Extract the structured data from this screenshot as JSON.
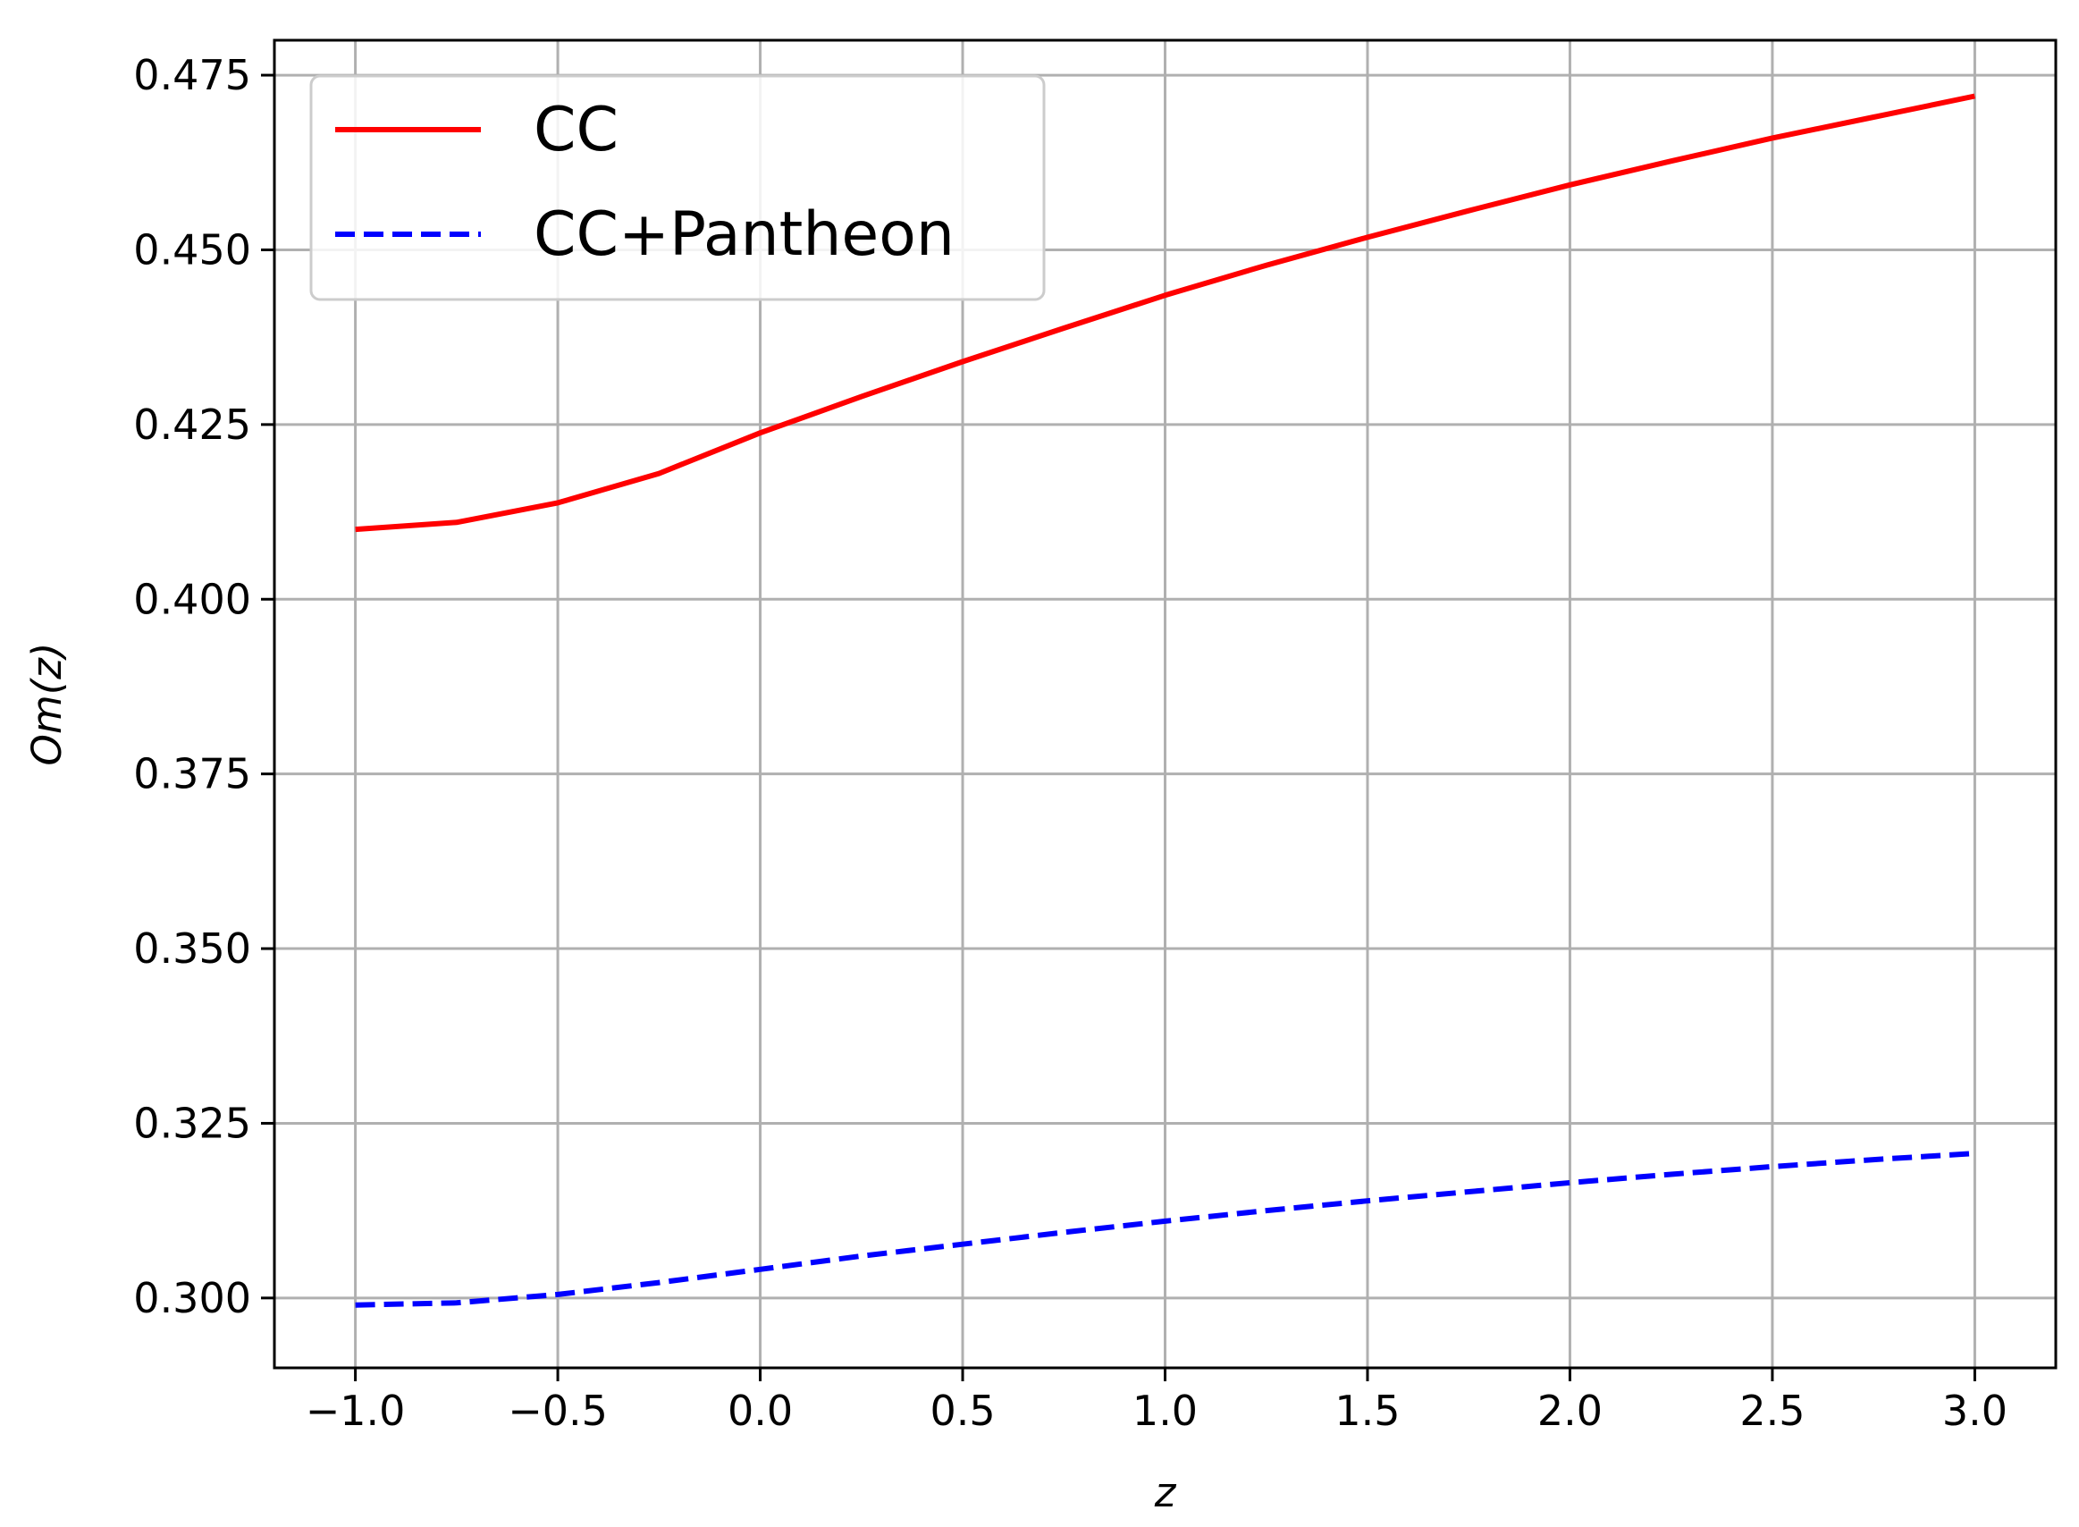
{
  "chart_data": {
    "type": "line",
    "title": "",
    "xlabel": "z",
    "ylabel": "Om(z)",
    "xlim": [
      -1.2,
      3.2
    ],
    "ylim": [
      0.29,
      0.48
    ],
    "x_ticks": [
      -1.0,
      -0.5,
      0.0,
      0.5,
      1.0,
      1.5,
      2.0,
      2.5,
      3.0
    ],
    "x_tick_labels": [
      "−1.0",
      "−0.5",
      "0.0",
      "0.5",
      "1.0",
      "1.5",
      "2.0",
      "2.5",
      "3.0"
    ],
    "y_ticks": [
      0.3,
      0.325,
      0.35,
      0.375,
      0.4,
      0.425,
      0.45,
      0.475
    ],
    "y_tick_labels": [
      "0.300",
      "0.325",
      "0.350",
      "0.375",
      "0.400",
      "0.425",
      "0.450",
      "0.475"
    ],
    "grid": true,
    "legend_position": "top-left",
    "x": [
      -1.0,
      -0.75,
      -0.5,
      -0.25,
      0.0,
      0.25,
      0.5,
      0.75,
      1.0,
      1.25,
      1.5,
      1.75,
      2.0,
      2.25,
      2.5,
      2.75,
      3.0
    ],
    "series": [
      {
        "name": "CC",
        "color": "#ff0000",
        "line_style": "solid",
        "values": [
          0.41,
          0.411,
          0.4138,
          0.418,
          0.4238,
          0.429,
          0.434,
          0.4388,
          0.4435,
          0.4478,
          0.4518,
          0.4556,
          0.4593,
          0.4627,
          0.466,
          0.469,
          0.472
        ]
      },
      {
        "name": "CC+Pantheon",
        "color": "#0000ff",
        "line_style": "dashed",
        "values": [
          0.299,
          0.2993,
          0.3005,
          0.3022,
          0.3041,
          0.306,
          0.3077,
          0.3094,
          0.311,
          0.3125,
          0.3139,
          0.3152,
          0.3165,
          0.3177,
          0.3188,
          0.3198,
          0.3207
        ]
      }
    ]
  }
}
